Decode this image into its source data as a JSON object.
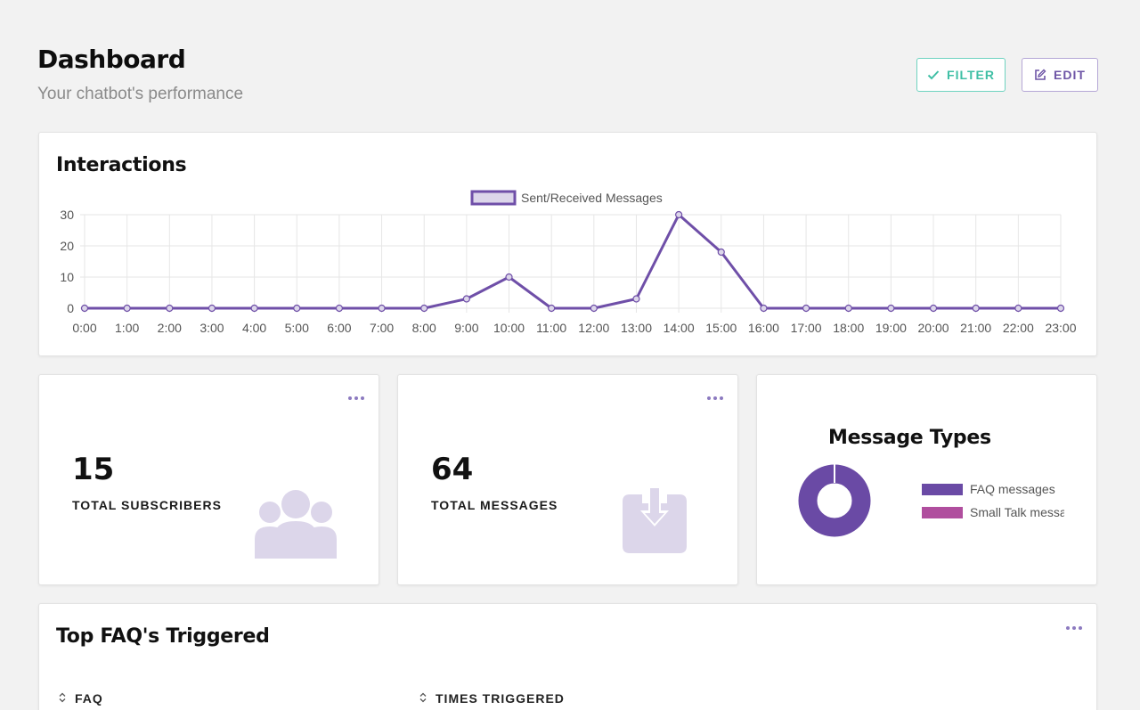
{
  "header": {
    "title": "Dashboard",
    "subtitle": "Your chatbot's performance",
    "filter_label": "FILTER",
    "edit_label": "EDIT"
  },
  "interactions": {
    "title": "Interactions"
  },
  "chart_data": {
    "type": "line",
    "x": [
      "0:00",
      "1:00",
      "2:00",
      "3:00",
      "4:00",
      "5:00",
      "6:00",
      "7:00",
      "8:00",
      "9:00",
      "10:00",
      "11:00",
      "12:00",
      "13:00",
      "14:00",
      "15:00",
      "16:00",
      "17:00",
      "18:00",
      "19:00",
      "20:00",
      "21:00",
      "22:00",
      "23:00"
    ],
    "series": [
      {
        "name": "Sent/Received Messages",
        "values": [
          0,
          0,
          0,
          0,
          0,
          0,
          0,
          0,
          0,
          3,
          10,
          0,
          0,
          3,
          30,
          18,
          0,
          0,
          0,
          0,
          0,
          0,
          0,
          0
        ],
        "color": "#6f4fa8"
      }
    ],
    "ylim": [
      0,
      30
    ],
    "yticks": [
      0,
      10,
      20,
      30
    ],
    "legend": "top-center",
    "grid": true
  },
  "stats": {
    "subscribers": {
      "value": "15",
      "label": "TOTAL SUBSCRIBERS",
      "icon": "users-icon"
    },
    "messages": {
      "value": "64",
      "label": "TOTAL MESSAGES",
      "icon": "inbox-download-icon"
    }
  },
  "message_types": {
    "title": "Message Types",
    "legend": [
      {
        "label": "FAQ messages",
        "color": "#6a4aa5"
      },
      {
        "label": "Small Talk messages",
        "color": "#b04e9e"
      }
    ],
    "chart_data": {
      "type": "pie",
      "categories": [
        "FAQ messages",
        "Small Talk messages"
      ],
      "values": [
        64,
        0
      ]
    }
  },
  "faq": {
    "title": "Top FAQ's Triggered",
    "columns": [
      "FAQ",
      "TIMES TRIGGERED"
    ]
  }
}
